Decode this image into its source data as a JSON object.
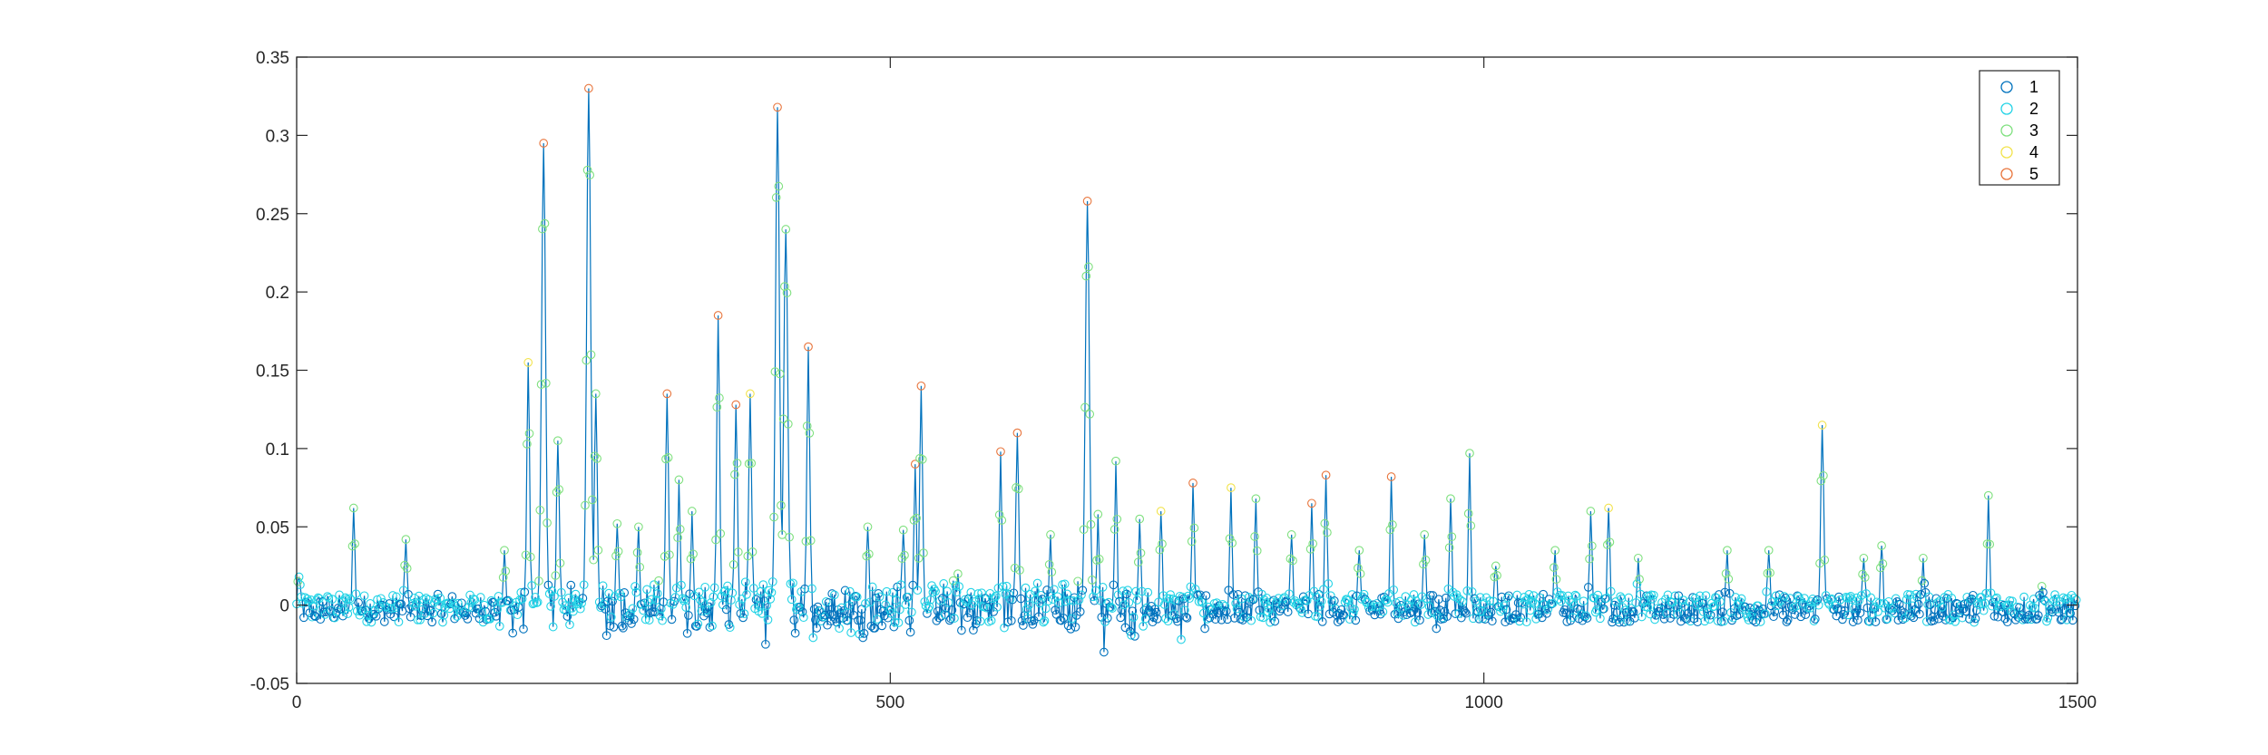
{
  "chart_data": {
    "type": "line",
    "title": "",
    "xlabel": "",
    "ylabel": "",
    "xlim": [
      0,
      1500
    ],
    "ylim": [
      -0.05,
      0.35
    ],
    "x_ticks": [
      0,
      500,
      1000,
      1500
    ],
    "x_tick_labels": [
      "0",
      "500",
      "1000",
      "1500"
    ],
    "y_ticks": [
      -0.05,
      0,
      0.05,
      0.1,
      0.15,
      0.2,
      0.25,
      0.3,
      0.35
    ],
    "y_tick_labels": [
      "-0.05",
      "0",
      "0.05",
      "0.1",
      "0.15",
      "0.2",
      "0.25",
      "0.3",
      "0.35"
    ],
    "grid": false,
    "legend_position": "top-right",
    "line_color": "#0072BD",
    "marker": "circle",
    "series": [
      {
        "name": "1",
        "color": "#0072BD"
      },
      {
        "name": "2",
        "color": "#22D3E6"
      },
      {
        "name": "3",
        "color": "#7FE07F"
      },
      {
        "name": "4",
        "color": "#F2E34C"
      },
      {
        "name": "5",
        "color": "#E8743B"
      }
    ],
    "peaks": [
      {
        "x": 2,
        "y": 0.018,
        "c": 2
      },
      {
        "x": 48,
        "y": 0.062,
        "c": 3
      },
      {
        "x": 92,
        "y": 0.042,
        "c": 3
      },
      {
        "x": 175,
        "y": 0.035,
        "c": 3
      },
      {
        "x": 195,
        "y": 0.155,
        "c": 4
      },
      {
        "x": 208,
        "y": 0.295,
        "c": 5
      },
      {
        "x": 220,
        "y": 0.105,
        "c": 3
      },
      {
        "x": 246,
        "y": 0.33,
        "c": 5
      },
      {
        "x": 252,
        "y": 0.135,
        "c": 3
      },
      {
        "x": 270,
        "y": 0.052,
        "c": 3
      },
      {
        "x": 288,
        "y": 0.05,
        "c": 3
      },
      {
        "x": 312,
        "y": 0.135,
        "c": 5
      },
      {
        "x": 322,
        "y": 0.08,
        "c": 3
      },
      {
        "x": 333,
        "y": 0.06,
        "c": 3
      },
      {
        "x": 355,
        "y": 0.185,
        "c": 5
      },
      {
        "x": 370,
        "y": 0.128,
        "c": 5
      },
      {
        "x": 382,
        "y": 0.135,
        "c": 4
      },
      {
        "x": 405,
        "y": 0.318,
        "c": 5
      },
      {
        "x": 412,
        "y": 0.24,
        "c": 3
      },
      {
        "x": 431,
        "y": 0.165,
        "c": 5
      },
      {
        "x": 481,
        "y": 0.05,
        "c": 3
      },
      {
        "x": 511,
        "y": 0.048,
        "c": 3
      },
      {
        "x": 521,
        "y": 0.09,
        "c": 5
      },
      {
        "x": 526,
        "y": 0.14,
        "c": 5
      },
      {
        "x": 557,
        "y": 0.02,
        "c": 3
      },
      {
        "x": 593,
        "y": 0.098,
        "c": 5
      },
      {
        "x": 607,
        "y": 0.11,
        "c": 5
      },
      {
        "x": 635,
        "y": 0.045,
        "c": 3
      },
      {
        "x": 666,
        "y": 0.258,
        "c": 5
      },
      {
        "x": 675,
        "y": 0.058,
        "c": 3
      },
      {
        "x": 690,
        "y": 0.092,
        "c": 3
      },
      {
        "x": 710,
        "y": 0.055,
        "c": 3
      },
      {
        "x": 728,
        "y": 0.06,
        "c": 4
      },
      {
        "x": 755,
        "y": 0.078,
        "c": 5
      },
      {
        "x": 787,
        "y": 0.075,
        "c": 4
      },
      {
        "x": 808,
        "y": 0.068,
        "c": 3
      },
      {
        "x": 838,
        "y": 0.045,
        "c": 3
      },
      {
        "x": 855,
        "y": 0.065,
        "c": 5
      },
      {
        "x": 867,
        "y": 0.083,
        "c": 5
      },
      {
        "x": 895,
        "y": 0.035,
        "c": 3
      },
      {
        "x": 922,
        "y": 0.082,
        "c": 5
      },
      {
        "x": 950,
        "y": 0.045,
        "c": 3
      },
      {
        "x": 972,
        "y": 0.068,
        "c": 3
      },
      {
        "x": 988,
        "y": 0.097,
        "c": 3
      },
      {
        "x": 1010,
        "y": 0.025,
        "c": 3
      },
      {
        "x": 1060,
        "y": 0.035,
        "c": 3
      },
      {
        "x": 1090,
        "y": 0.06,
        "c": 3
      },
      {
        "x": 1105,
        "y": 0.062,
        "c": 4
      },
      {
        "x": 1130,
        "y": 0.03,
        "c": 3
      },
      {
        "x": 1205,
        "y": 0.035,
        "c": 3
      },
      {
        "x": 1240,
        "y": 0.035,
        "c": 3
      },
      {
        "x": 1285,
        "y": 0.115,
        "c": 4
      },
      {
        "x": 1320,
        "y": 0.03,
        "c": 3
      },
      {
        "x": 1335,
        "y": 0.038,
        "c": 3
      },
      {
        "x": 1370,
        "y": 0.03,
        "c": 3
      },
      {
        "x": 1425,
        "y": 0.07,
        "c": 3
      },
      {
        "x": 1470,
        "y": 0.012,
        "c": 3
      }
    ]
  }
}
